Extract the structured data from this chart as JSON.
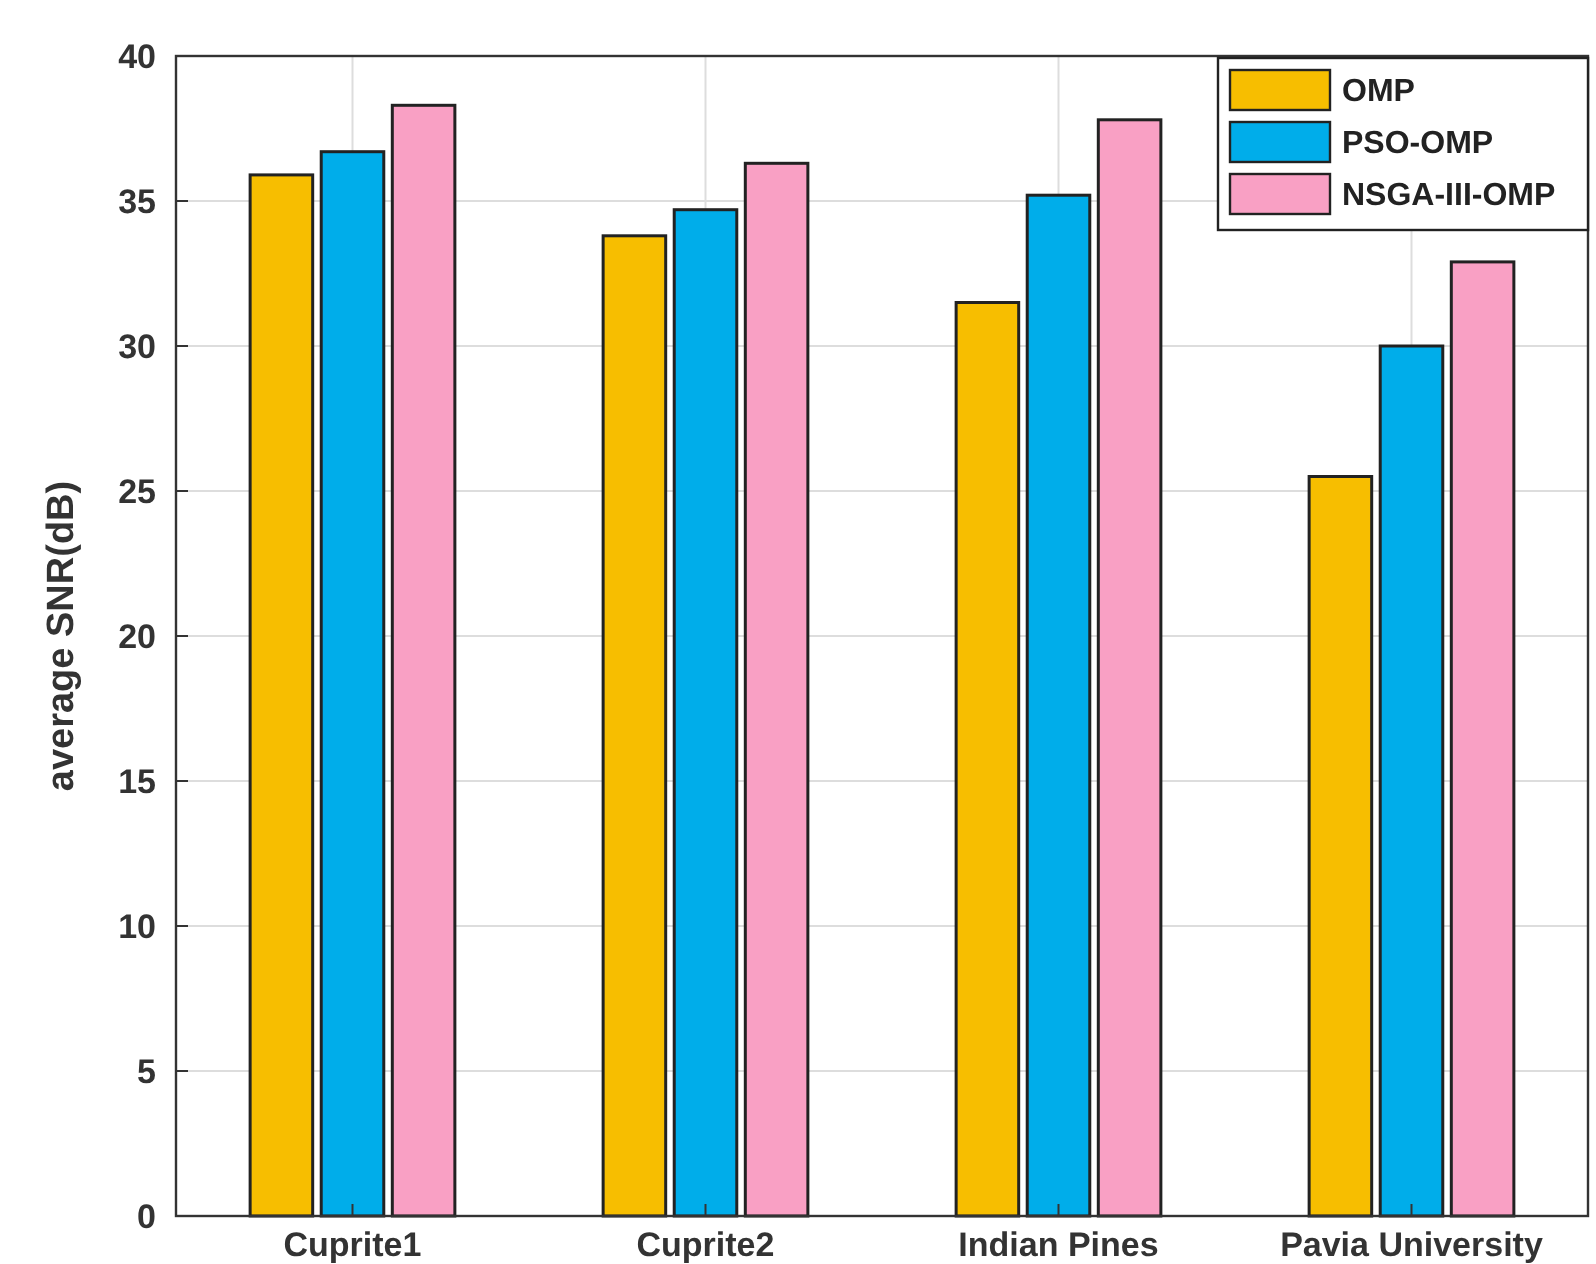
{
  "chart_data": {
    "type": "bar",
    "ylabel": "average SNR(dB)",
    "categories": [
      "Cuprite1",
      "Cuprite2",
      "Indian Pines",
      "Pavia University"
    ],
    "series": [
      {
        "name": "OMP",
        "color": "#f7be00",
        "values": [
          35.9,
          33.8,
          31.5,
          25.5
        ]
      },
      {
        "name": "PSO-OMP",
        "color": "#00adea",
        "values": [
          36.7,
          34.7,
          35.2,
          30.0
        ]
      },
      {
        "name": "NSGA-III-OMP",
        "color": "#f9a0c4",
        "values": [
          38.3,
          36.3,
          37.8,
          32.9
        ]
      }
    ],
    "ylim": [
      0,
      40
    ],
    "yticks": [
      0,
      5,
      10,
      15,
      20,
      25,
      30,
      35,
      40
    ],
    "grid": true,
    "legend": "top right"
  }
}
